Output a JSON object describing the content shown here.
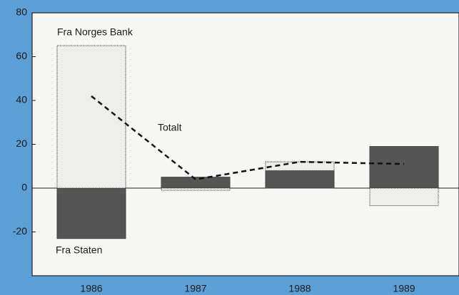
{
  "chart_data": {
    "type": "bar",
    "categories": [
      "1986",
      "1987",
      "1988",
      "1989"
    ],
    "series": [
      {
        "name": "Fra Staten",
        "color": "#555555",
        "values": [
          -23,
          5,
          8,
          19
        ]
      },
      {
        "name": "Fra Norges Bank",
        "color": "#eeeeea",
        "values": [
          65,
          -1,
          4,
          -8
        ]
      },
      {
        "name": "Totalt",
        "type": "line",
        "color": "#111111",
        "values": [
          42,
          4,
          12,
          11
        ]
      }
    ],
    "ylim": [
      -40,
      80
    ],
    "yticks": [
      -20,
      0,
      20,
      40,
      60,
      80
    ]
  }
}
